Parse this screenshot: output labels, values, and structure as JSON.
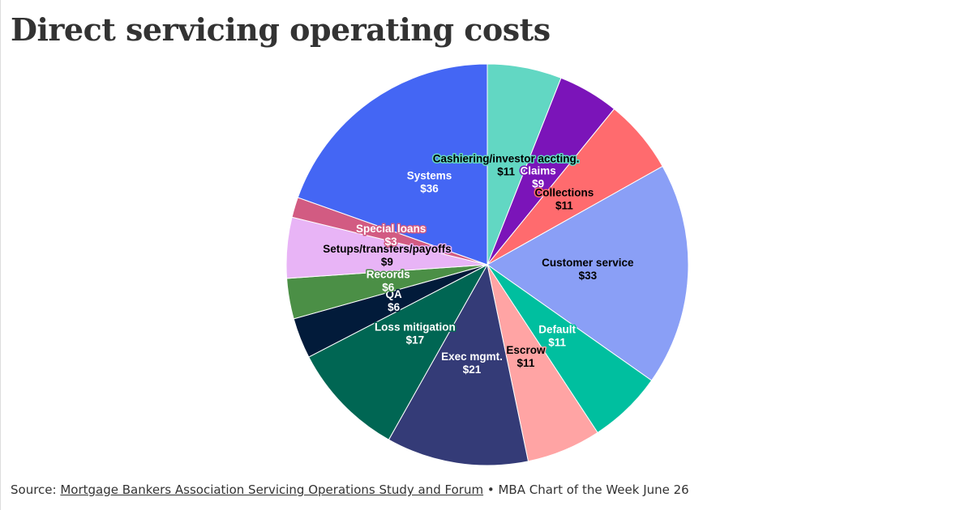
{
  "chart_data": {
    "type": "pie",
    "title": "Direct servicing operating costs",
    "categories": [
      "Cashiering/investor accting.",
      "Claims",
      "Collections",
      "Customer service",
      "Default",
      "Escrow",
      "Exec mgmt.",
      "Loss mitigation",
      "QA",
      "Records",
      "Setups/transfers/payoffs",
      "Special loans",
      "Systems"
    ],
    "values": [
      11,
      9,
      11,
      33,
      11,
      11,
      21,
      17,
      6,
      6,
      9,
      3,
      36
    ],
    "value_labels": [
      "$11",
      "$9",
      "$11",
      "$33",
      "$11",
      "$11",
      "$21",
      "$17",
      "$6",
      "$6",
      "$9",
      "$3",
      "$36"
    ],
    "colors": [
      "#62d7c3",
      "#7b14b9",
      "#ff6b6e",
      "#8a9ff6",
      "#00bf9f",
      "#ffa4a4",
      "#343b77",
      "#006653",
      "#021b3a",
      "#4b8f46",
      "#e8b4f6",
      "#d25b82",
      "#4466f4"
    ],
    "source": {
      "label": "Source:",
      "link": "Mortgage Bankers Association Servicing Operations Study and Forum",
      "note": "• MBA Chart of the Week June 26"
    }
  }
}
